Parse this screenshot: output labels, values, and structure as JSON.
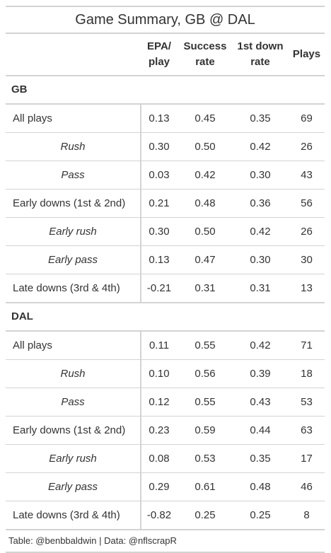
{
  "chart_data": {
    "type": "table",
    "title": "Game Summary, GB @ DAL",
    "columns": [
      {
        "line1": "EPA/",
        "line2": "play"
      },
      {
        "line1": "Success",
        "line2": "rate"
      },
      {
        "line1": "1st down",
        "line2": "rate"
      },
      {
        "line1": "Plays",
        "line2": ""
      }
    ],
    "groups": [
      {
        "name": "GB",
        "rows": [
          {
            "label": "All plays",
            "indent": false,
            "values": [
              "0.13",
              "0.45",
              "0.35",
              "69"
            ]
          },
          {
            "label": "Rush",
            "indent": true,
            "values": [
              "0.30",
              "0.50",
              "0.42",
              "26"
            ]
          },
          {
            "label": "Pass",
            "indent": true,
            "values": [
              "0.03",
              "0.42",
              "0.30",
              "43"
            ]
          },
          {
            "label": "Early downs (1st & 2nd)",
            "indent": false,
            "values": [
              "0.21",
              "0.48",
              "0.36",
              "56"
            ]
          },
          {
            "label": "Early rush",
            "indent": true,
            "values": [
              "0.30",
              "0.50",
              "0.42",
              "26"
            ]
          },
          {
            "label": "Early pass",
            "indent": true,
            "values": [
              "0.13",
              "0.47",
              "0.30",
              "30"
            ]
          },
          {
            "label": "Late downs (3rd & 4th)",
            "indent": false,
            "values": [
              "-0.21",
              "0.31",
              "0.31",
              "13"
            ]
          }
        ]
      },
      {
        "name": "DAL",
        "rows": [
          {
            "label": "All plays",
            "indent": false,
            "values": [
              "0.11",
              "0.55",
              "0.42",
              "71"
            ]
          },
          {
            "label": "Rush",
            "indent": true,
            "values": [
              "0.10",
              "0.56",
              "0.39",
              "18"
            ]
          },
          {
            "label": "Pass",
            "indent": true,
            "values": [
              "0.12",
              "0.55",
              "0.43",
              "53"
            ]
          },
          {
            "label": "Early downs (1st & 2nd)",
            "indent": false,
            "values": [
              "0.23",
              "0.59",
              "0.44",
              "63"
            ]
          },
          {
            "label": "Early rush",
            "indent": true,
            "values": [
              "0.08",
              "0.53",
              "0.35",
              "17"
            ]
          },
          {
            "label": "Early pass",
            "indent": true,
            "values": [
              "0.29",
              "0.61",
              "0.48",
              "46"
            ]
          },
          {
            "label": "Late downs (3rd & 4th)",
            "indent": false,
            "values": [
              "-0.82",
              "0.25",
              "0.25",
              "8"
            ]
          }
        ]
      }
    ],
    "source": "Table: @benbbaldwin | Data: @nflscrapR"
  }
}
